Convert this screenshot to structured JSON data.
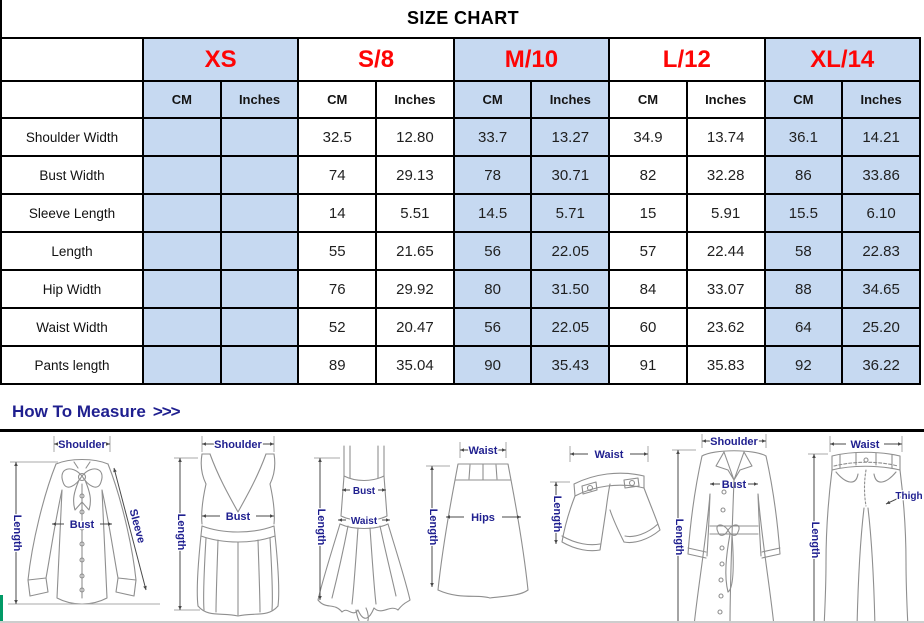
{
  "title": "SIZE CHART",
  "colors": {
    "header_fill": "#c6d9f1",
    "size_text": "#fe0505",
    "measure_text": "#1f1f8f",
    "border": "#000000",
    "green_strip": "#019a66"
  },
  "table": {
    "sizes": [
      "XS",
      "S/8",
      "M/10",
      "L/12",
      "XL/14"
    ],
    "unit_headers": [
      "CM",
      "Inches"
    ],
    "rows": [
      {
        "label": "Shoulder Width",
        "values": [
          "",
          "",
          "32.5",
          "12.80",
          "33.7",
          "13.27",
          "34.9",
          "13.74",
          "36.1",
          "14.21"
        ]
      },
      {
        "label": "Bust Width",
        "values": [
          "",
          "",
          "74",
          "29.13",
          "78",
          "30.71",
          "82",
          "32.28",
          "86",
          "33.86"
        ]
      },
      {
        "label": "Sleeve Length",
        "values": [
          "",
          "",
          "14",
          "5.51",
          "14.5",
          "5.71",
          "15",
          "5.91",
          "15.5",
          "6.10"
        ]
      },
      {
        "label": "Length",
        "values": [
          "",
          "",
          "55",
          "21.65",
          "56",
          "22.05",
          "57",
          "22.44",
          "58",
          "22.83"
        ]
      },
      {
        "label": "Hip Width",
        "values": [
          "",
          "",
          "76",
          "29.92",
          "80",
          "31.50",
          "84",
          "33.07",
          "88",
          "34.65"
        ]
      },
      {
        "label": "Waist Width",
        "values": [
          "",
          "",
          "52",
          "20.47",
          "56",
          "22.05",
          "60",
          "23.62",
          "64",
          "25.20"
        ]
      },
      {
        "label": "Pants length",
        "values": [
          "",
          "",
          "89",
          "35.04",
          "90",
          "35.43",
          "91",
          "35.83",
          "92",
          "36.22"
        ]
      }
    ]
  },
  "measure": {
    "heading": "How To Measure",
    "chevrons": ">>>",
    "garments": [
      {
        "name": "blouse",
        "labels": {
          "shoulder": "Shoulder",
          "length": "Length",
          "bust": "Bust",
          "sleeve": "Sleeve"
        }
      },
      {
        "name": "tank-top",
        "labels": {
          "shoulder": "Shoulder",
          "length": "Length",
          "bust": "Bust"
        }
      },
      {
        "name": "slip-dress",
        "labels": {
          "length": "Length",
          "bust": "Bust",
          "waist": "Waist"
        }
      },
      {
        "name": "skirt",
        "labels": {
          "waist": "Waist",
          "length": "Length",
          "hips": "Hips"
        }
      },
      {
        "name": "shorts",
        "labels": {
          "waist": "Waist",
          "length": "Length"
        }
      },
      {
        "name": "trench-coat",
        "labels": {
          "shoulder": "Shoulder",
          "bust": "Bust",
          "length": "Length"
        }
      },
      {
        "name": "pants",
        "labels": {
          "waist": "Waist",
          "length": "Length",
          "thigh": "Thigh"
        }
      }
    ]
  }
}
